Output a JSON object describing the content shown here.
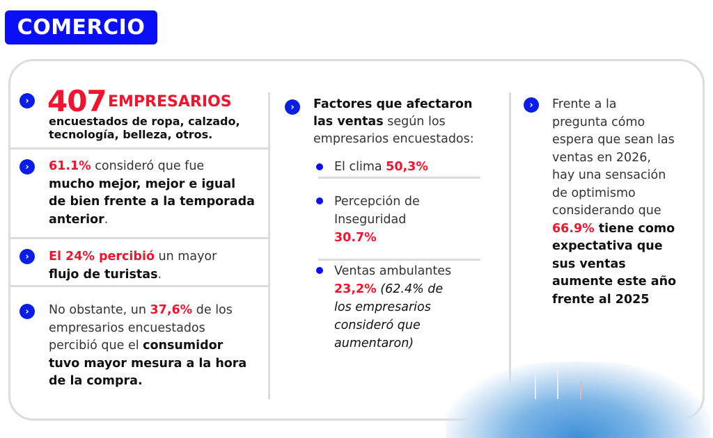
{
  "header": {
    "title": "COMERCIO"
  },
  "colors": {
    "brand_blue": "#0a0ff5",
    "accent_red": "#f2142e",
    "border_gray": "#dcdcdc"
  },
  "left_column": {
    "block1": {
      "number": "407",
      "label": "EMPRESARIOS",
      "line1": "encuestados de ropa, calzado,",
      "line2": "tecnología, belleza, otros."
    },
    "block2": {
      "pct": "61.1%",
      "lead": " consideró que fue",
      "bold1": "mucho mejor, mejor e igual",
      "bold2": "de bien frente a la temporada",
      "bold3": "anterior",
      "end": "."
    },
    "block3": {
      "red": "El 24% percibió",
      "rest": " un mayor",
      "bold": "flujo de turistas",
      "end": "."
    },
    "block4": {
      "lead": "No obstante, un ",
      "pct": "37,6%",
      "after": " de los",
      "line2": "empresarios encuestados",
      "line3": "percibió que el ",
      "bold3": "consumidor",
      "bold4": "tuvo mayor mesura a la hora",
      "bold5": "de la compra."
    }
  },
  "middle_column": {
    "intro_bold1": "Factores que afectaron",
    "intro_bold2": "las ventas",
    "intro_rest2": " según los",
    "intro_line3": "empresarios encuestados:",
    "factors": [
      {
        "label": "El clima ",
        "value": "50,3%"
      },
      {
        "label1": "Percepción de",
        "label2": "Inseguridad",
        "value": "30.7%"
      },
      {
        "label": "Ventas ambulantes",
        "value": "23,2%",
        "note1": " (62.4% de",
        "note2": "los empresarios",
        "note3": "consideró que",
        "note4": "aumentaron)"
      }
    ]
  },
  "right_column": {
    "lines": [
      "Frente a la",
      "pregunta cómo",
      "espera que sean las",
      "ventas en 2026,",
      "hay una sensación",
      "de optimismo",
      "considerando que"
    ],
    "pct": "66.9%",
    "bold_after": " tiene como",
    "bold_lines": [
      "expectativa que",
      "sus ventas",
      "aumente este año",
      "frente al 2025"
    ]
  },
  "icons": {
    "bullet": "chevron-right-circle-icon",
    "list_dot": "dot-icon"
  }
}
